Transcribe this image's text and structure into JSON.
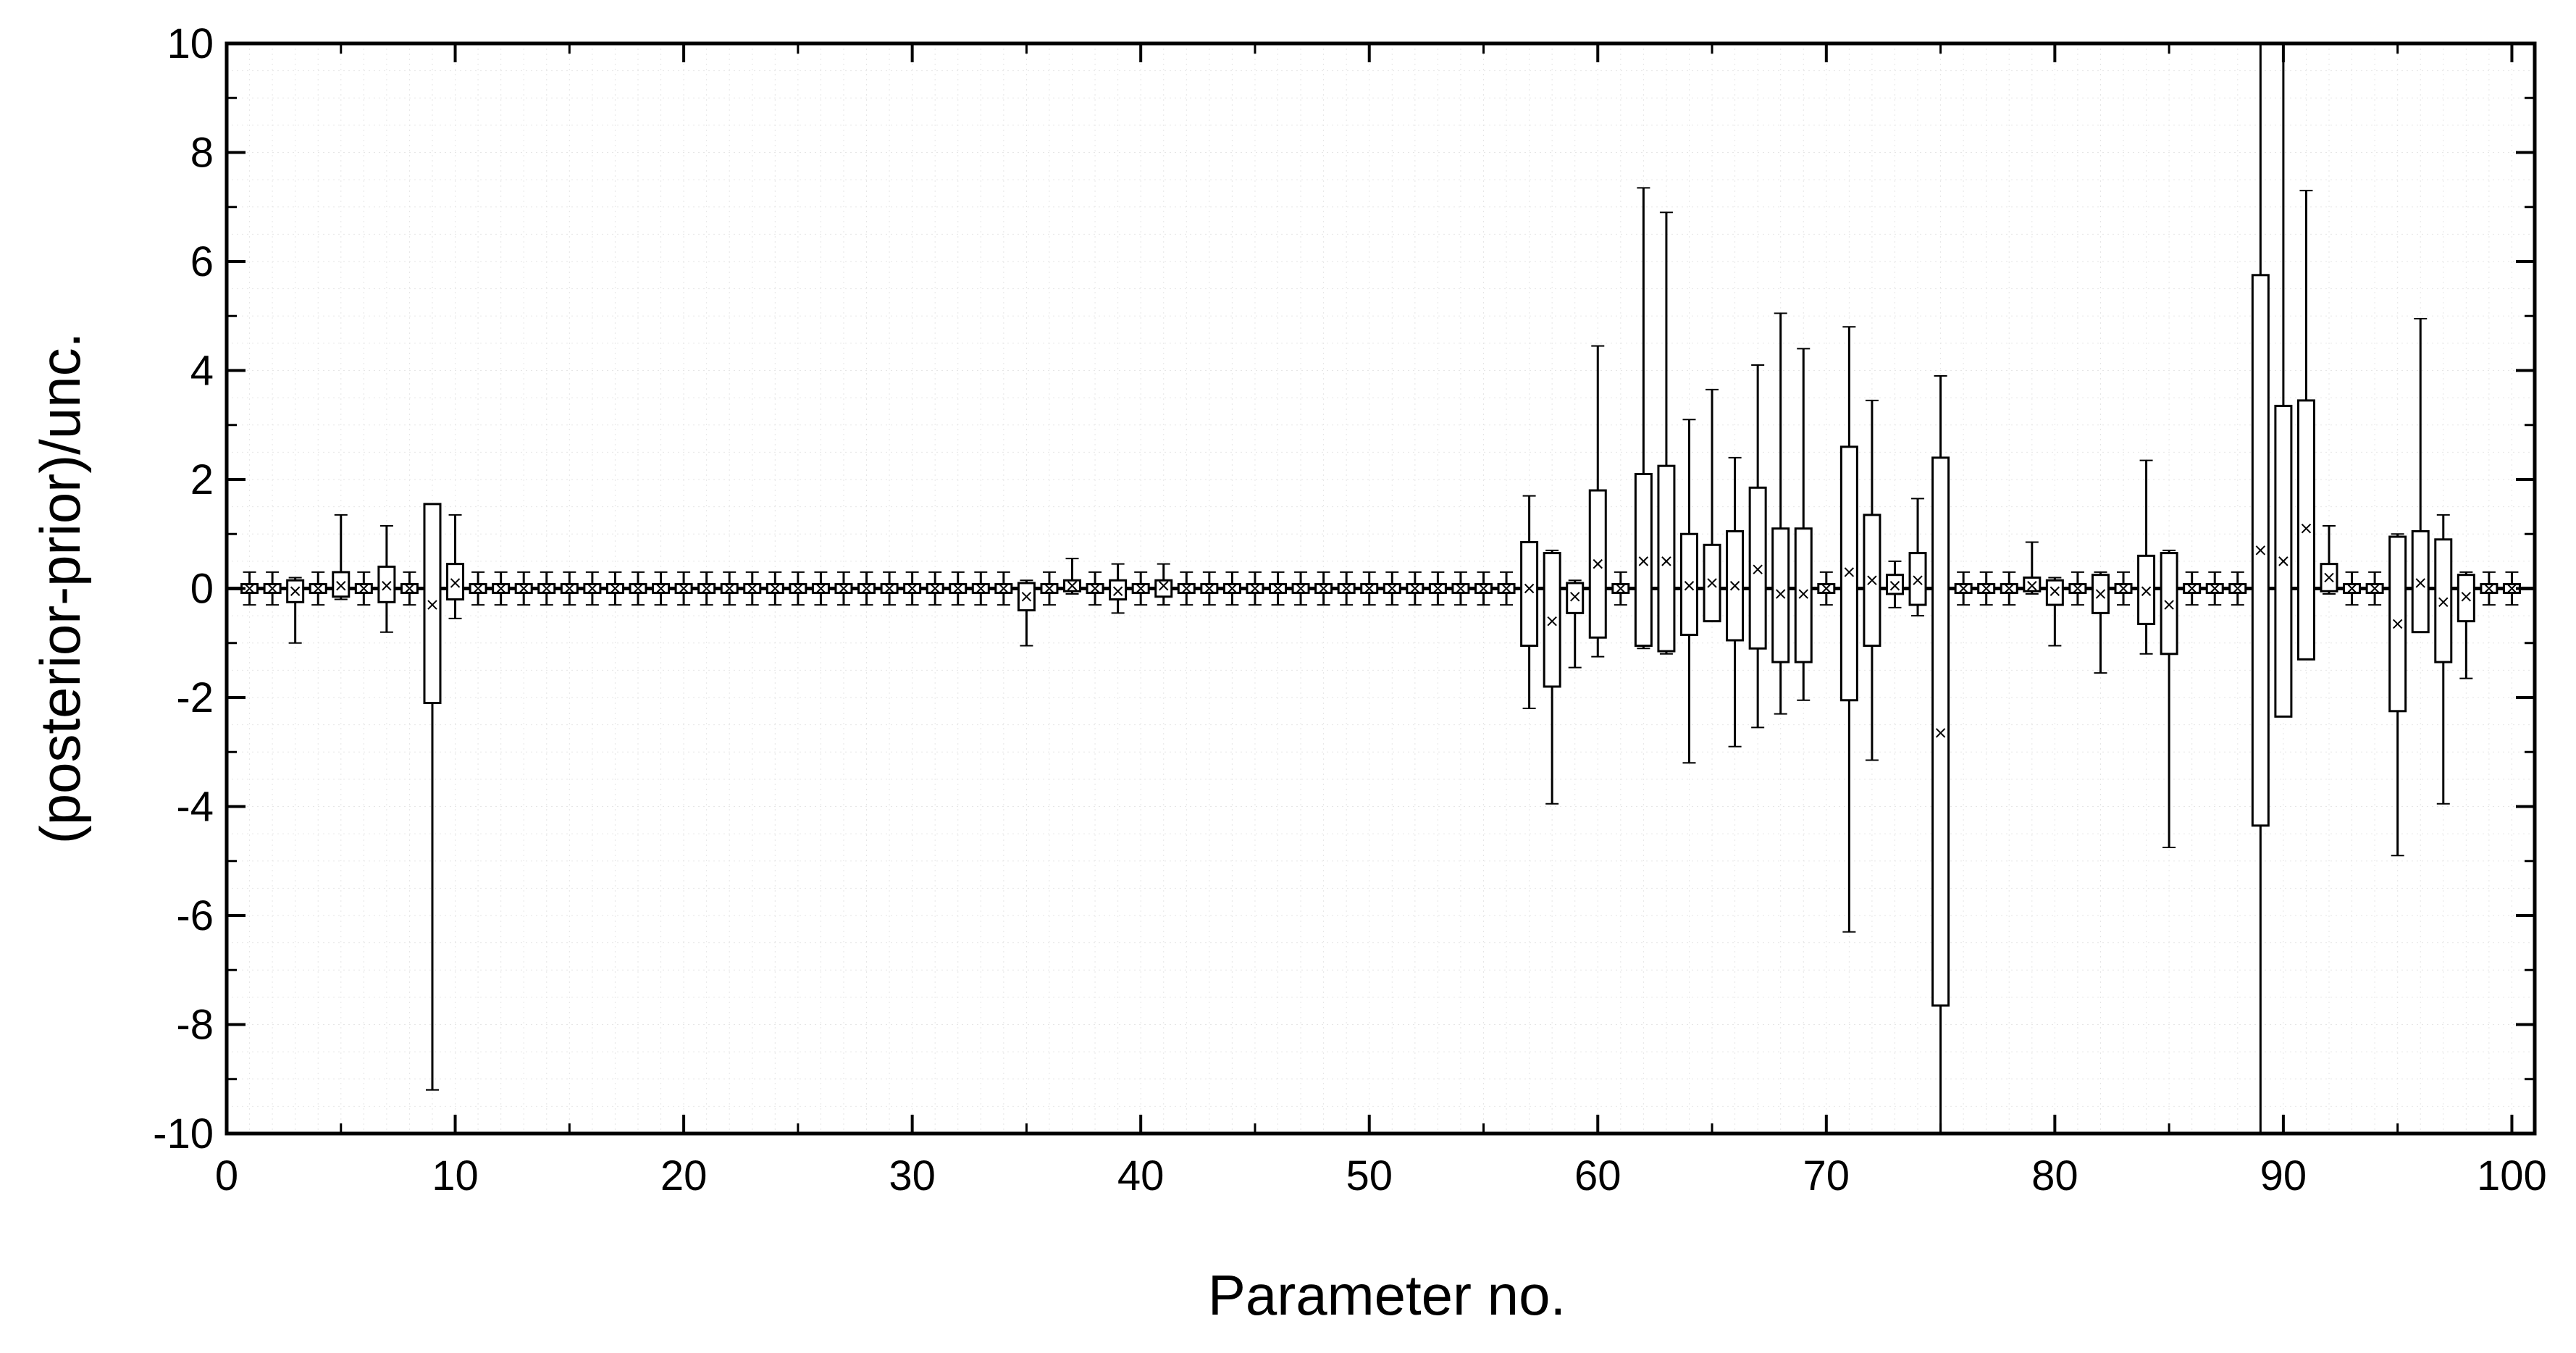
{
  "chart_data": {
    "type": "box",
    "xlabel": "Parameter no.",
    "ylabel": "(posterior-prior)/unc.",
    "xlim": [
      0,
      101
    ],
    "ylim": [
      -10,
      10
    ],
    "x_ticks": [
      0,
      10,
      20,
      30,
      40,
      50,
      60,
      70,
      80,
      90,
      100
    ],
    "y_ticks": [
      -10,
      -8,
      -6,
      -4,
      -2,
      0,
      2,
      4,
      6,
      8,
      10
    ],
    "reference_line_y": 0,
    "default_box": {
      "q1": -0.08,
      "q3": 0.08,
      "whisker_low": -0.3,
      "whisker_high": 0.3,
      "mean": 0.0
    },
    "boxes": [
      {
        "x": 3,
        "q1": -0.25,
        "q3": 0.15,
        "whisker_low": -1.0,
        "whisker_high": 0.2,
        "mean": -0.05
      },
      {
        "x": 5,
        "q1": -0.15,
        "q3": 0.3,
        "whisker_low": -0.2,
        "whisker_high": 1.35,
        "mean": 0.05
      },
      {
        "x": 7,
        "q1": -0.25,
        "q3": 0.4,
        "whisker_low": -0.8,
        "whisker_high": 1.15,
        "mean": 0.05
      },
      {
        "x": 9,
        "q1": -2.1,
        "q3": 1.55,
        "whisker_low": -9.2,
        "whisker_high": 1.55,
        "mean": -0.3
      },
      {
        "x": 10,
        "q1": -0.2,
        "q3": 0.45,
        "whisker_low": -0.55,
        "whisker_high": 1.35,
        "mean": 0.1
      },
      {
        "x": 35,
        "q1": -0.4,
        "q3": 0.1,
        "whisker_low": -1.05,
        "whisker_high": 0.15,
        "mean": -0.15
      },
      {
        "x": 37,
        "q1": -0.05,
        "q3": 0.15,
        "whisker_low": -0.1,
        "whisker_high": 0.55,
        "mean": 0.05
      },
      {
        "x": 39,
        "q1": -0.2,
        "q3": 0.15,
        "whisker_low": -0.45,
        "whisker_high": 0.45,
        "mean": -0.05
      },
      {
        "x": 41,
        "q1": -0.15,
        "q3": 0.15,
        "whisker_low": -0.3,
        "whisker_high": 0.45,
        "mean": 0.05
      },
      {
        "x": 57,
        "q1": -1.05,
        "q3": 0.85,
        "whisker_low": -2.2,
        "whisker_high": 1.7,
        "mean": 0.0
      },
      {
        "x": 58,
        "q1": -1.8,
        "q3": 0.65,
        "whisker_low": -3.95,
        "whisker_high": 0.7,
        "mean": -0.6
      },
      {
        "x": 59,
        "q1": -0.45,
        "q3": 0.1,
        "whisker_low": -1.45,
        "whisker_high": 0.15,
        "mean": -0.15
      },
      {
        "x": 60,
        "q1": -0.9,
        "q3": 1.8,
        "whisker_low": -1.25,
        "whisker_high": 4.45,
        "mean": 0.45
      },
      {
        "x": 62,
        "q1": -1.05,
        "q3": 2.1,
        "whisker_low": -1.1,
        "whisker_high": 7.35,
        "mean": 0.5
      },
      {
        "x": 63,
        "q1": -1.15,
        "q3": 2.25,
        "whisker_low": -1.2,
        "whisker_high": 6.9,
        "mean": 0.5
      },
      {
        "x": 64,
        "q1": -0.85,
        "q3": 1.0,
        "whisker_low": -3.2,
        "whisker_high": 3.1,
        "mean": 0.05
      },
      {
        "x": 65,
        "q1": -0.6,
        "q3": 0.8,
        "whisker_low": -0.6,
        "whisker_high": 3.65,
        "mean": 0.1
      },
      {
        "x": 66,
        "q1": -0.95,
        "q3": 1.05,
        "whisker_low": -2.9,
        "whisker_high": 2.4,
        "mean": 0.05
      },
      {
        "x": 67,
        "q1": -1.1,
        "q3": 1.85,
        "whisker_low": -2.55,
        "whisker_high": 4.1,
        "mean": 0.35
      },
      {
        "x": 68,
        "q1": -1.35,
        "q3": 1.1,
        "whisker_low": -2.3,
        "whisker_high": 5.05,
        "mean": -0.1
      },
      {
        "x": 69,
        "q1": -1.35,
        "q3": 1.1,
        "whisker_low": -2.05,
        "whisker_high": 4.4,
        "mean": -0.1
      },
      {
        "x": 71,
        "q1": -2.05,
        "q3": 2.6,
        "whisker_low": -6.3,
        "whisker_high": 4.8,
        "mean": 0.3
      },
      {
        "x": 72,
        "q1": -1.05,
        "q3": 1.35,
        "whisker_low": -3.15,
        "whisker_high": 3.45,
        "mean": 0.15
      },
      {
        "x": 73,
        "q1": -0.1,
        "q3": 0.25,
        "whisker_low": -0.35,
        "whisker_high": 0.5,
        "mean": 0.05
      },
      {
        "x": 74,
        "q1": -0.3,
        "q3": 0.65,
        "whisker_low": -0.5,
        "whisker_high": 1.65,
        "mean": 0.15
      },
      {
        "x": 75,
        "q1": -7.65,
        "q3": 2.4,
        "whisker_low": -10.0,
        "whisker_high": 3.9,
        "mean": -2.65
      },
      {
        "x": 79,
        "q1": -0.05,
        "q3": 0.2,
        "whisker_low": -0.1,
        "whisker_high": 0.85,
        "mean": 0.05
      },
      {
        "x": 80,
        "q1": -0.3,
        "q3": 0.15,
        "whisker_low": -1.05,
        "whisker_high": 0.2,
        "mean": -0.05
      },
      {
        "x": 82,
        "q1": -0.45,
        "q3": 0.25,
        "whisker_low": -1.55,
        "whisker_high": 0.3,
        "mean": -0.1
      },
      {
        "x": 84,
        "q1": -0.65,
        "q3": 0.6,
        "whisker_low": -1.2,
        "whisker_high": 2.35,
        "mean": -0.05
      },
      {
        "x": 85,
        "q1": -1.2,
        "q3": 0.65,
        "whisker_low": -4.75,
        "whisker_high": 0.7,
        "mean": -0.3
      },
      {
        "x": 89,
        "q1": -4.35,
        "q3": 5.75,
        "whisker_low": -10.0,
        "whisker_high": 10.0,
        "mean": 0.7
      },
      {
        "x": 90,
        "q1": -2.35,
        "q3": 3.35,
        "whisker_low": -2.35,
        "whisker_high": 10.0,
        "mean": 0.5
      },
      {
        "x": 91,
        "q1": -1.3,
        "q3": 3.45,
        "whisker_low": -1.3,
        "whisker_high": 7.3,
        "mean": 1.1
      },
      {
        "x": 92,
        "q1": -0.05,
        "q3": 0.45,
        "whisker_low": -0.1,
        "whisker_high": 1.15,
        "mean": 0.2
      },
      {
        "x": 95,
        "q1": -2.25,
        "q3": 0.95,
        "whisker_low": -4.9,
        "whisker_high": 1.0,
        "mean": -0.65
      },
      {
        "x": 96,
        "q1": -0.8,
        "q3": 1.05,
        "whisker_low": -0.8,
        "whisker_high": 4.95,
        "mean": 0.1
      },
      {
        "x": 97,
        "q1": -1.35,
        "q3": 0.9,
        "whisker_low": -3.95,
        "whisker_high": 1.35,
        "mean": -0.25
      },
      {
        "x": 98,
        "q1": -0.6,
        "q3": 0.25,
        "whisker_low": -1.65,
        "whisker_high": 0.3,
        "mean": -0.15
      }
    ]
  }
}
